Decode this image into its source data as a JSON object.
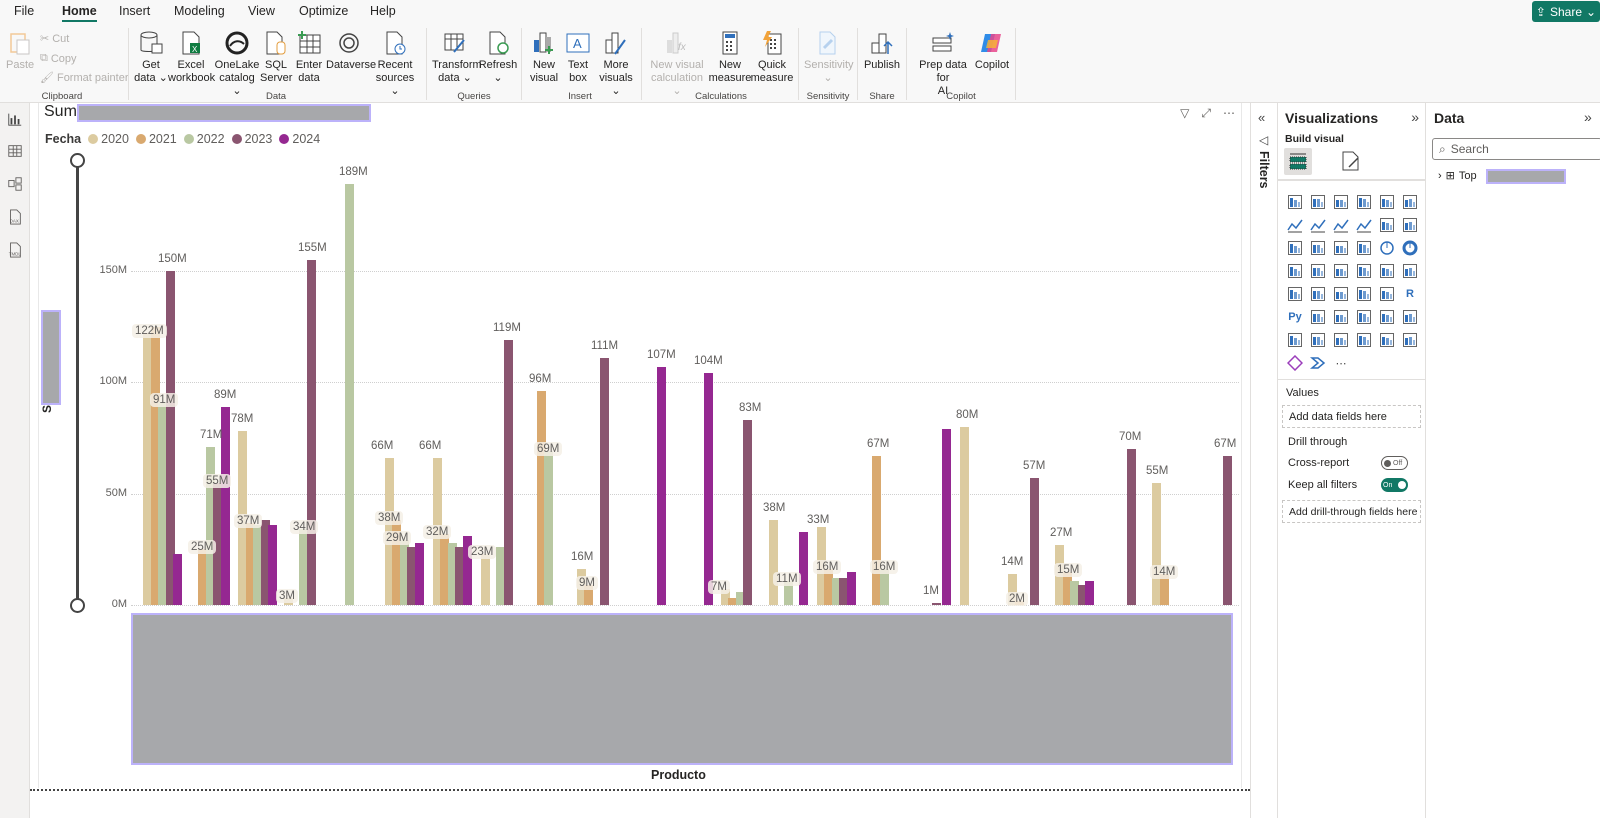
{
  "menu": {
    "tabs": [
      "File",
      "Home",
      "Insert",
      "Modeling",
      "View",
      "Optimize",
      "Help"
    ],
    "active": "Home",
    "share_label": "Share"
  },
  "ribbon": {
    "clipboard": {
      "paste": "Paste",
      "cut": "Cut",
      "copy": "Copy",
      "format_painter": "Format painter",
      "group": "Clipboard"
    },
    "data": {
      "get_data": [
        "Get",
        "data ⌄"
      ],
      "excel": [
        "Excel",
        "workbook"
      ],
      "onelake": [
        "OneLake",
        "catalog ⌄"
      ],
      "sql": [
        "SQL",
        "Server"
      ],
      "enter": [
        "Enter",
        "data"
      ],
      "dataverse": [
        "Dataverse",
        ""
      ],
      "recent": [
        "Recent",
        "sources ⌄"
      ],
      "group": "Data"
    },
    "queries": {
      "transform": [
        "Transform",
        "data ⌄"
      ],
      "refresh": [
        "Refresh",
        "⌄"
      ],
      "group": "Queries"
    },
    "insert": {
      "new_visual": [
        "New",
        "visual"
      ],
      "text_box": [
        "Text",
        "box"
      ],
      "more_visuals": [
        "More",
        "visuals ⌄"
      ],
      "group": "Insert"
    },
    "calculations": {
      "new_visual_calc": [
        "New visual",
        "calculation ⌄"
      ],
      "new_measure": [
        "New",
        "measure"
      ],
      "quick_measure": [
        "Quick",
        "measure"
      ],
      "group": "Calculations"
    },
    "sensitivity": {
      "label": [
        "Sensitivity",
        "⌄"
      ],
      "group": "Sensitivity"
    },
    "share": {
      "publish": [
        "Publish",
        ""
      ],
      "group": "Share"
    },
    "copilot": {
      "prep": [
        "Prep data for",
        "AI"
      ],
      "copilot": [
        "Copilot",
        ""
      ],
      "group": "Copilot"
    }
  },
  "visual": {
    "title_prefix": "Sum",
    "legend_title": "Fecha",
    "y_axis_label": "Sum of",
    "x_axis_label": "Producto"
  },
  "chart_data": {
    "type": "bar",
    "title": "Sum of [redacted]",
    "xlabel": "Producto",
    "ylabel": "Sum of [redacted]",
    "ylim": [
      0,
      200
    ],
    "y_ticks": [
      "0M",
      "50M",
      "100M",
      "150M"
    ],
    "grid": true,
    "legend_position": "top-left",
    "legend_title": "Fecha",
    "series_names": [
      "2020",
      "2021",
      "2022",
      "2023",
      "2024"
    ],
    "series_colors": {
      "2020": "#dccba0",
      "2021": "#d9a96f",
      "2022": "#b9c8a2",
      "2023": "#8a5570",
      "2024": "#952891"
    },
    "categories_note": "Product category labels are redacted in the screenshot",
    "groups": [
      {
        "bars": [
          {
            "s": "2020",
            "x": 146,
            "v": 122
          },
          {
            "s": "2021",
            "x": 154,
            "v": 125
          },
          {
            "s": "2022",
            "x": 161,
            "v": 91
          },
          {
            "s": "2023",
            "x": 169,
            "v": 150
          },
          {
            "s": "2024",
            "x": 176,
            "v": 23
          }
        ],
        "labels": [
          {
            "t": "122M",
            "x": 134,
            "v": 122,
            "bg": true
          },
          {
            "t": "150M",
            "x": 157,
            "v": 150
          },
          {
            "t": "91M",
            "x": 152,
            "v": 91,
            "bg": true
          }
        ]
      },
      {
        "bars": [
          {
            "s": "2021",
            "x": 201,
            "v": 25
          },
          {
            "s": "2022",
            "x": 209,
            "v": 71
          },
          {
            "s": "2023",
            "x": 216,
            "v": 55
          },
          {
            "s": "2024",
            "x": 224,
            "v": 89
          }
        ],
        "labels": [
          {
            "t": "25M",
            "x": 190,
            "v": 25,
            "bg": true
          },
          {
            "t": "71M",
            "x": 199,
            "v": 71
          },
          {
            "t": "55M",
            "x": 205,
            "v": 55,
            "bg": true
          },
          {
            "t": "89M",
            "x": 213,
            "v": 89
          }
        ]
      },
      {
        "bars": [
          {
            "s": "2020",
            "x": 241,
            "v": 78
          },
          {
            "s": "2021",
            "x": 249,
            "v": 37
          },
          {
            "s": "2022",
            "x": 256,
            "v": 36
          },
          {
            "s": "2023",
            "x": 264,
            "v": 38
          },
          {
            "s": "2024",
            "x": 271,
            "v": 36
          }
        ],
        "labels": [
          {
            "t": "78M",
            "x": 230,
            "v": 78
          },
          {
            "t": "37M",
            "x": 236,
            "v": 37,
            "bg": true
          }
        ]
      },
      {
        "bars": [
          {
            "s": "2020",
            "x": 287,
            "v": 3
          },
          {
            "s": "2022",
            "x": 302,
            "v": 34
          },
          {
            "s": "2023",
            "x": 310,
            "v": 155
          }
        ],
        "labels": [
          {
            "t": "3M",
            "x": 278,
            "v": 3,
            "bg": true
          },
          {
            "t": "34M",
            "x": 292,
            "v": 34,
            "bg": true
          },
          {
            "t": "155M",
            "x": 297,
            "v": 155
          }
        ]
      },
      {
        "bars": [
          {
            "s": "2022",
            "x": 348,
            "v": 189
          }
        ],
        "labels": [
          {
            "t": "189M",
            "x": 338,
            "v": 189
          }
        ]
      },
      {
        "bars": [
          {
            "s": "2020",
            "x": 388,
            "v": 66
          },
          {
            "s": "2021",
            "x": 395,
            "v": 38
          },
          {
            "s": "2022",
            "x": 403,
            "v": 29
          },
          {
            "s": "2023",
            "x": 410,
            "v": 26
          },
          {
            "s": "2024",
            "x": 418,
            "v": 28
          }
        ],
        "labels": [
          {
            "t": "66M",
            "x": 370,
            "v": 66
          },
          {
            "t": "38M",
            "x": 377,
            "v": 38,
            "bg": true
          },
          {
            "t": "29M",
            "x": 385,
            "v": 29,
            "bg": true
          }
        ]
      },
      {
        "bars": [
          {
            "s": "2020",
            "x": 436,
            "v": 66
          },
          {
            "s": "2021",
            "x": 443,
            "v": 32
          },
          {
            "s": "2022",
            "x": 451,
            "v": 28
          },
          {
            "s": "2023",
            "x": 458,
            "v": 26
          },
          {
            "s": "2024",
            "x": 466,
            "v": 31
          }
        ],
        "labels": [
          {
            "t": "66M",
            "x": 418,
            "v": 66
          },
          {
            "t": "32M",
            "x": 425,
            "v": 32,
            "bg": true
          }
        ]
      },
      {
        "bars": [
          {
            "s": "2020",
            "x": 484,
            "v": 23
          },
          {
            "s": "2022",
            "x": 499,
            "v": 26
          },
          {
            "s": "2023",
            "x": 507,
            "v": 119
          }
        ],
        "labels": [
          {
            "t": "23M",
            "x": 470,
            "v": 23,
            "bg": true
          },
          {
            "t": "119M",
            "x": 492,
            "v": 119
          }
        ]
      },
      {
        "bars": [
          {
            "s": "2021",
            "x": 540,
            "v": 96
          },
          {
            "s": "2022",
            "x": 547,
            "v": 69
          }
        ],
        "labels": [
          {
            "t": "96M",
            "x": 528,
            "v": 96
          },
          {
            "t": "69M",
            "x": 536,
            "v": 69,
            "bg": true
          }
        ]
      },
      {
        "bars": [
          {
            "s": "2020",
            "x": 580,
            "v": 16
          },
          {
            "s": "2021",
            "x": 587,
            "v": 9
          },
          {
            "s": "2023",
            "x": 603,
            "v": 111
          }
        ],
        "labels": [
          {
            "t": "16M",
            "x": 570,
            "v": 16
          },
          {
            "t": "9M",
            "x": 578,
            "v": 9,
            "bg": true
          },
          {
            "t": "111M",
            "x": 590,
            "v": 111
          }
        ]
      },
      {
        "bars": [
          {
            "s": "2024",
            "x": 660,
            "v": 107
          }
        ],
        "labels": [
          {
            "t": "107M",
            "x": 646,
            "v": 107
          }
        ]
      },
      {
        "bars": [
          {
            "s": "2024",
            "x": 707,
            "v": 104
          },
          {
            "s": "2020",
            "x": 724,
            "v": 7
          },
          {
            "s": "2021",
            "x": 731,
            "v": 3
          },
          {
            "s": "2022",
            "x": 739,
            "v": 6
          },
          {
            "s": "2023",
            "x": 746,
            "v": 83
          }
        ],
        "labels": [
          {
            "t": "104M",
            "x": 693,
            "v": 104
          },
          {
            "t": "7M",
            "x": 710,
            "v": 7,
            "bg": true
          },
          {
            "t": "83M",
            "x": 738,
            "v": 83
          }
        ]
      },
      {
        "bars": [
          {
            "s": "2020",
            "x": 772,
            "v": 38
          },
          {
            "s": "2022",
            "x": 787,
            "v": 11
          },
          {
            "s": "2024",
            "x": 802,
            "v": 33
          }
        ],
        "labels": [
          {
            "t": "38M",
            "x": 762,
            "v": 38
          },
          {
            "t": "11M",
            "x": 775,
            "v": 11,
            "bg": true
          },
          {
            "t": "33M",
            "x": 806,
            "v": 33
          }
        ]
      },
      {
        "bars": [
          {
            "s": "2020",
            "x": 820,
            "v": 35
          },
          {
            "s": "2021",
            "x": 827,
            "v": 16
          },
          {
            "s": "2022",
            "x": 835,
            "v": 12
          },
          {
            "s": "2023",
            "x": 842,
            "v": 12
          },
          {
            "s": "2024",
            "x": 850,
            "v": 15
          }
        ],
        "labels": [
          {
            "t": "16M",
            "x": 815,
            "v": 16,
            "bg": true
          }
        ]
      },
      {
        "bars": [
          {
            "s": "2021",
            "x": 875,
            "v": 67
          },
          {
            "s": "2022",
            "x": 883,
            "v": 16
          }
        ],
        "labels": [
          {
            "t": "67M",
            "x": 866,
            "v": 67
          },
          {
            "t": "16M",
            "x": 872,
            "v": 16,
            "bg": true
          }
        ]
      },
      {
        "bars": [
          {
            "s": "2023",
            "x": 935,
            "v": 1
          },
          {
            "s": "2024",
            "x": 945,
            "v": 79
          },
          {
            "s": "2020",
            "x": 963,
            "v": 80
          }
        ],
        "labels": [
          {
            "t": "1M",
            "x": 922,
            "v": 1
          },
          {
            "t": "80M",
            "x": 955,
            "v": 80
          }
        ]
      },
      {
        "bars": [
          {
            "s": "2020",
            "x": 1011,
            "v": 14
          },
          {
            "s": "2021",
            "x": 1018,
            "v": 2
          },
          {
            "s": "2023",
            "x": 1033,
            "v": 57
          }
        ],
        "labels": [
          {
            "t": "14M",
            "x": 1000,
            "v": 14
          },
          {
            "t": "2M",
            "x": 1008,
            "v": 2,
            "bg": true
          },
          {
            "t": "57M",
            "x": 1022,
            "v": 57
          }
        ]
      },
      {
        "bars": [
          {
            "s": "2020",
            "x": 1058,
            "v": 27
          },
          {
            "s": "2021",
            "x": 1066,
            "v": 15
          },
          {
            "s": "2022",
            "x": 1073,
            "v": 11
          },
          {
            "s": "2023",
            "x": 1081,
            "v": 9
          },
          {
            "s": "2024",
            "x": 1088,
            "v": 11
          }
        ],
        "labels": [
          {
            "t": "27M",
            "x": 1049,
            "v": 27
          },
          {
            "t": "15M",
            "x": 1056,
            "v": 15,
            "bg": true
          }
        ]
      },
      {
        "bars": [
          {
            "s": "2023",
            "x": 1130,
            "v": 70
          }
        ],
        "labels": [
          {
            "t": "70M",
            "x": 1118,
            "v": 70
          }
        ]
      },
      {
        "bars": [
          {
            "s": "2020",
            "x": 1155,
            "v": 55
          },
          {
            "s": "2021",
            "x": 1163,
            "v": 14
          }
        ],
        "labels": [
          {
            "t": "55M",
            "x": 1145,
            "v": 55
          },
          {
            "t": "14M",
            "x": 1152,
            "v": 14,
            "bg": true
          }
        ]
      },
      {
        "bars": [
          {
            "s": "2023",
            "x": 1226,
            "v": 67
          }
        ],
        "labels": [
          {
            "t": "67M",
            "x": 1213,
            "v": 67
          }
        ]
      }
    ]
  },
  "filters": {
    "label": "Filters"
  },
  "visualizations": {
    "title": "Visualizations",
    "build_visual": "Build visual",
    "values_label": "Values",
    "values_placeholder": "Add data fields here",
    "drill_through": "Drill through",
    "cross_report": "Cross-report",
    "cross_report_state": "Off",
    "keep_filters": "Keep all filters",
    "keep_filters_state": "On",
    "drill_placeholder": "Add drill-through fields here"
  },
  "data_pane": {
    "title": "Data",
    "search_placeholder": "Search",
    "table_name": "Top"
  }
}
